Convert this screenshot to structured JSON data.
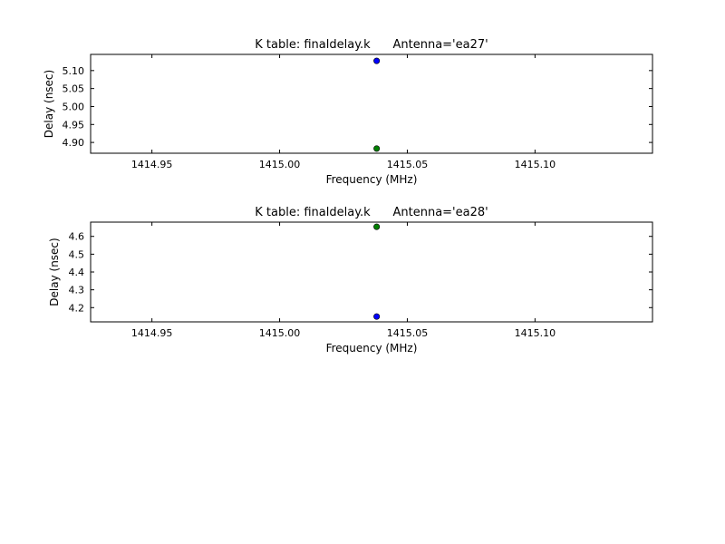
{
  "chart_data": [
    {
      "type": "scatter",
      "title": "K table: finaldelay.k      Antenna='ea27'",
      "xlabel": "Frequency (MHz)",
      "ylabel": "Delay (nsec)",
      "xlim": [
        1414.926,
        1415.146
      ],
      "ylim": [
        4.87,
        5.145
      ],
      "xticks": [
        1414.95,
        1415.0,
        1415.05,
        1415.1
      ],
      "xtick_labels": [
        "1414.95",
        "1415.00",
        "1415.05",
        "1415.10"
      ],
      "yticks": [
        4.9,
        4.95,
        5.0,
        5.05,
        5.1
      ],
      "ytick_labels": [
        "4.90",
        "4.95",
        "5.00",
        "5.05",
        "5.10"
      ],
      "grid": false,
      "series": [
        {
          "color": "#0000ff",
          "points": [
            {
              "x": 1415.038,
              "y": 5.127
            }
          ]
        },
        {
          "color": "#008000",
          "points": [
            {
              "x": 1415.038,
              "y": 4.883
            }
          ]
        }
      ]
    },
    {
      "type": "scatter",
      "title": "K table: finaldelay.k      Antenna='ea28'",
      "xlabel": "Frequency (MHz)",
      "ylabel": "Delay (nsec)",
      "xlim": [
        1414.926,
        1415.146
      ],
      "ylim": [
        4.12,
        4.68
      ],
      "xticks": [
        1414.95,
        1415.0,
        1415.05,
        1415.1
      ],
      "xtick_labels": [
        "1414.95",
        "1415.00",
        "1415.05",
        "1415.10"
      ],
      "yticks": [
        4.2,
        4.3,
        4.4,
        4.5,
        4.6
      ],
      "ytick_labels": [
        "4.2",
        "4.3",
        "4.4",
        "4.5",
        "4.6"
      ],
      "grid": false,
      "series": [
        {
          "color": "#008000",
          "points": [
            {
              "x": 1415.038,
              "y": 4.654
            }
          ]
        },
        {
          "color": "#0000ff",
          "points": [
            {
              "x": 1415.038,
              "y": 4.15
            }
          ]
        }
      ]
    }
  ]
}
